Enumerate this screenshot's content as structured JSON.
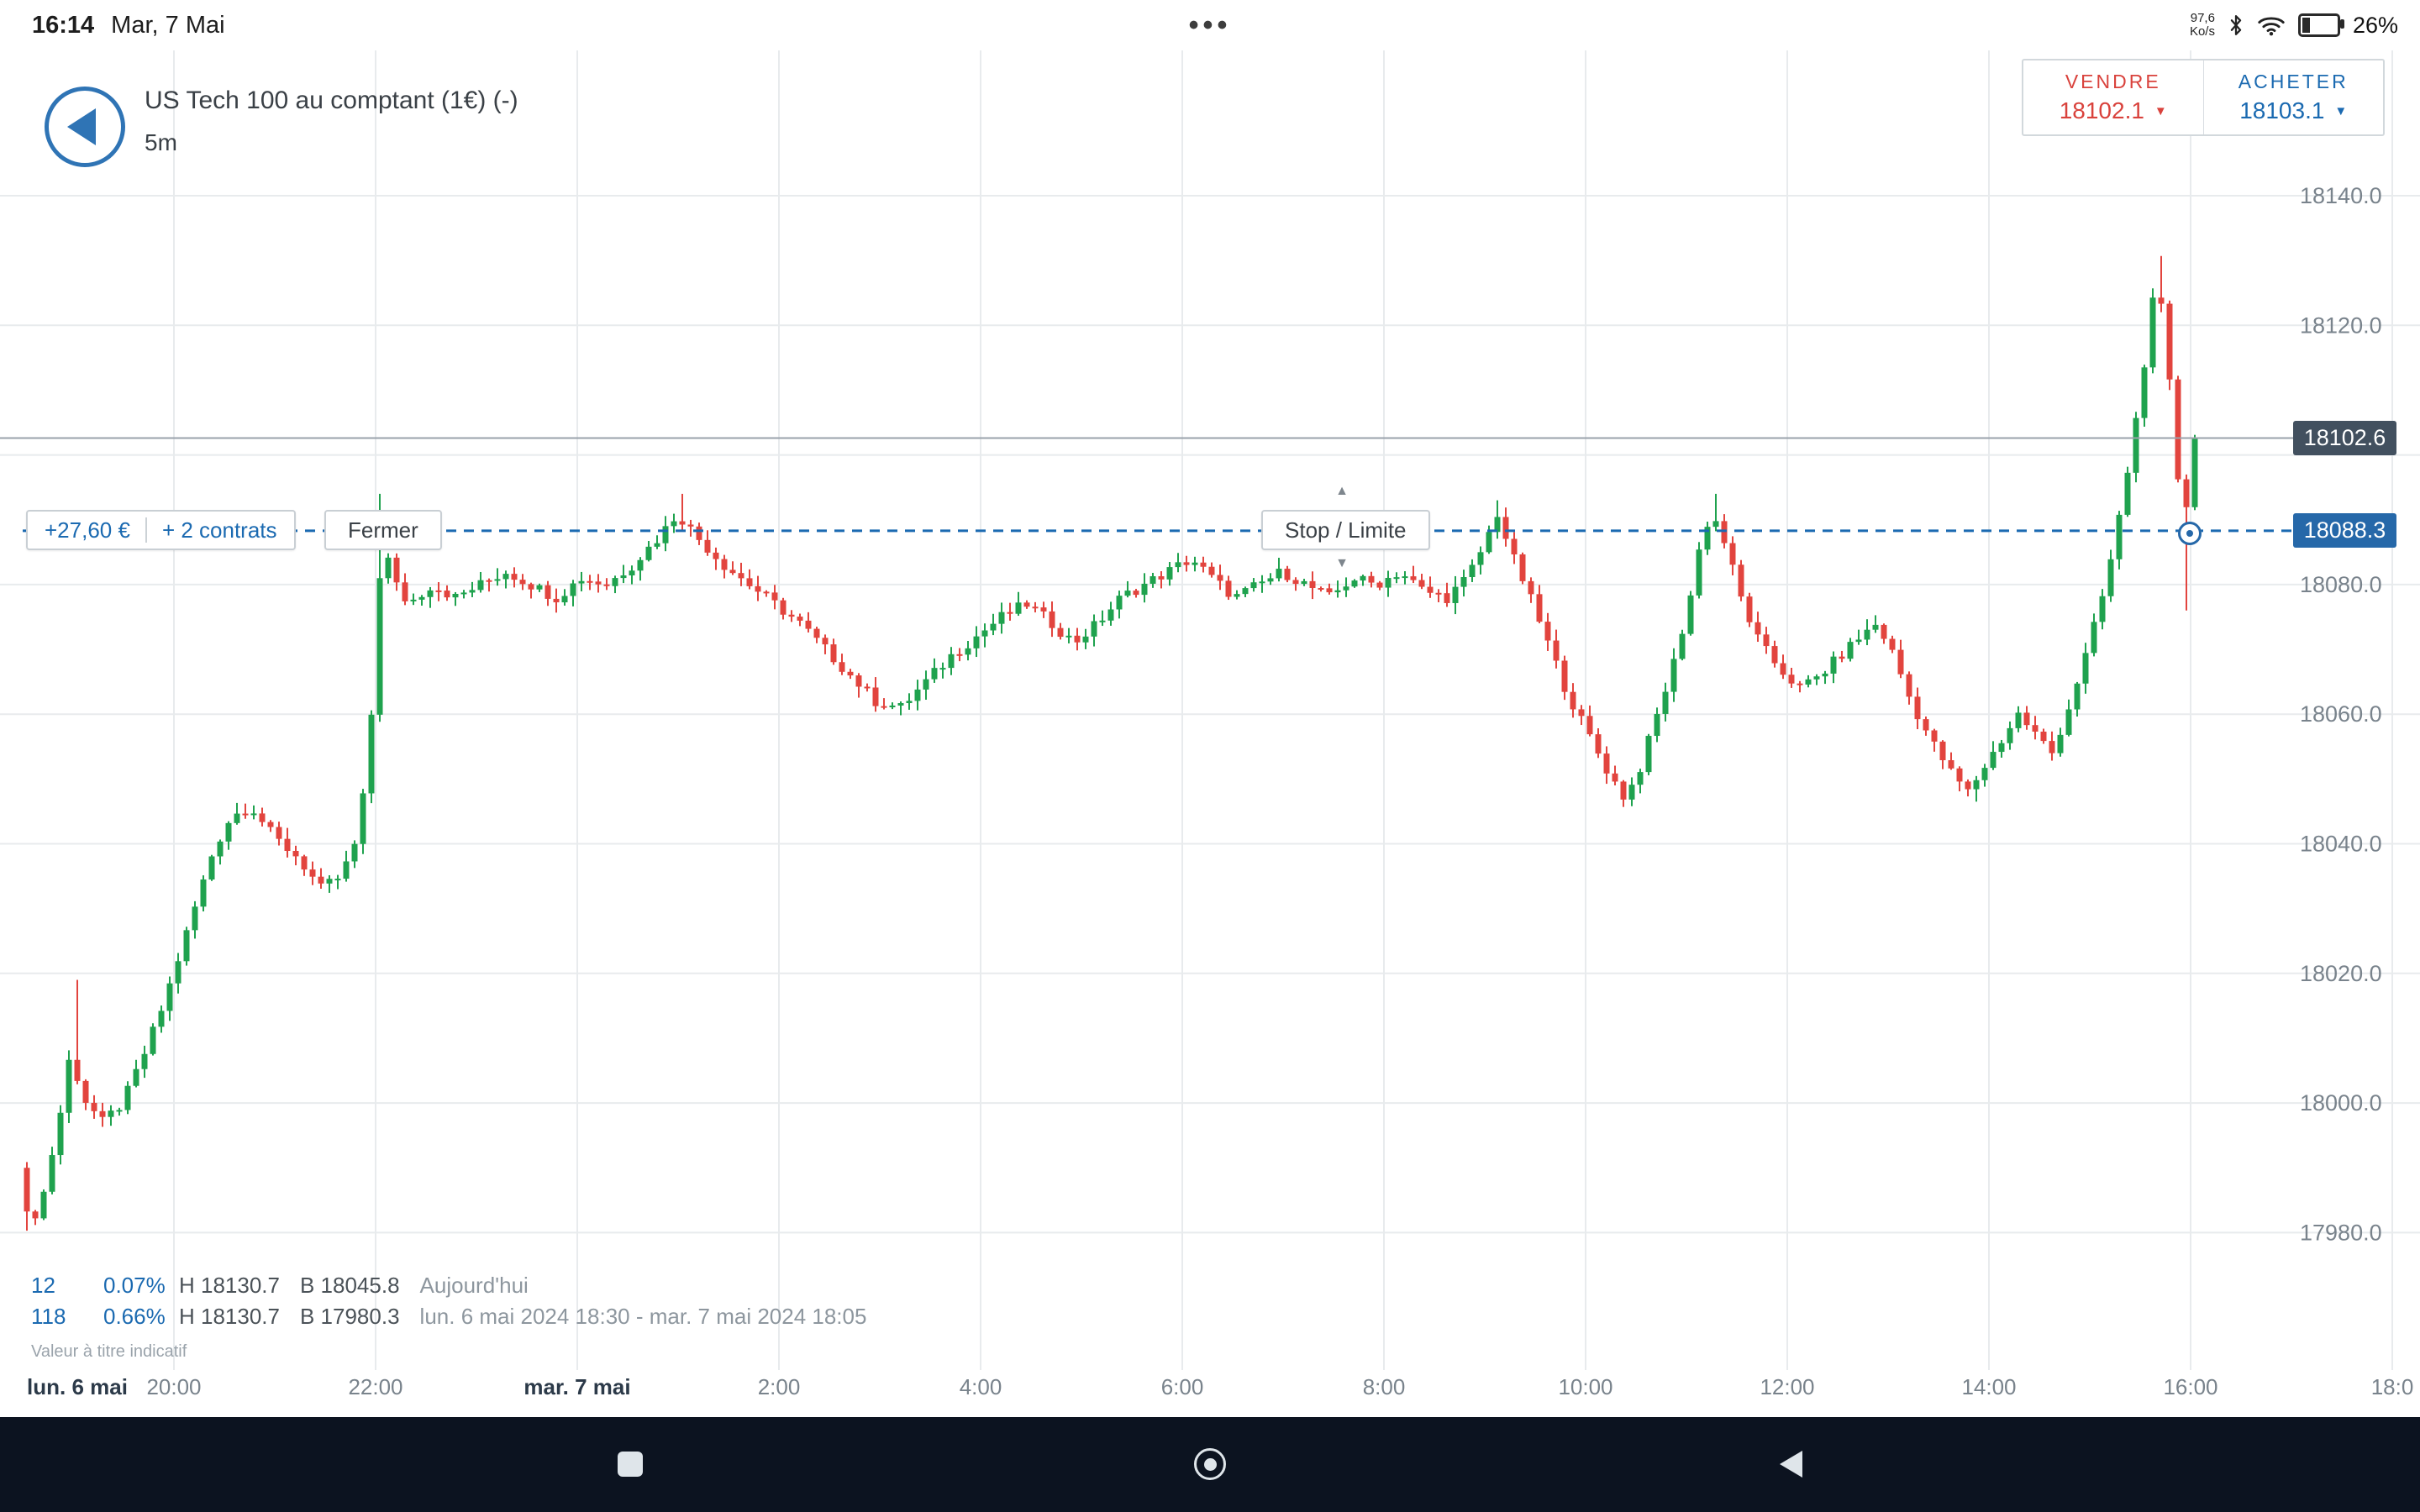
{
  "status_bar": {
    "time": "16:14",
    "date": "Mar, 7 Mai",
    "menu_dots": "•••",
    "network_speed_value": "97,6",
    "network_speed_unit": "Ko/s",
    "battery_percent": "26%"
  },
  "header": {
    "instrument": "US Tech 100 au comptant (1€) (-)",
    "timeframe": "5m"
  },
  "deal_ticket": {
    "sell_label": "VENDRE",
    "sell_price": "18102.1",
    "sell_caret": "▼",
    "buy_label": "ACHETER",
    "buy_price": "18103.1",
    "buy_caret": "▼"
  },
  "position_bar": {
    "pnl": "+27,60 €",
    "contracts": "+ 2 contrats",
    "close_label": "Fermer",
    "stop_limit_label": "Stop / Limite",
    "arrow_up": "▲",
    "arrow_down": "▼",
    "level": 18088.3,
    "level_label": "18088.3"
  },
  "current_price": {
    "value": 18102.6,
    "label": "18102.6"
  },
  "stats": {
    "row1": {
      "bars": "12",
      "pct": "0.07%",
      "high": "H 18130.7",
      "low": "B 18045.8",
      "range": "Aujourd'hui"
    },
    "row2": {
      "bars": "118",
      "pct": "0.66%",
      "high": "H 18130.7",
      "low": "B 17980.3",
      "range": "lun. 6 mai 2024 18:30 - mar. 7 mai 2024 18:05"
    },
    "disclaimer": "Valeur à titre indicatif"
  },
  "colors": {
    "accent_blue": "#1b6ab1",
    "sell_red": "#d9423c"
  },
  "chart_data": {
    "type": "candlestick",
    "interval_minutes": 5,
    "minutes_total": 1295,
    "session_start_label": "lun. 6 mai 2024 18:30",
    "session_end_label": "mar. 7 mai 2024 18:05",
    "session_high": 18130.7,
    "session_low": 17980.3,
    "today_high": 18130.7,
    "today_low": 18045.8,
    "last_price": 18102.6,
    "up_color": "#1fa24e",
    "down_color": "#e2443e",
    "colors": {
      "grid": "#e8ebed",
      "axis_text": "#79838c",
      "axis_day": "#2c3a49",
      "last_price_line": "#9aa2ab"
    },
    "y_axis": {
      "min": 17968,
      "max": 18146,
      "gridlines": [
        18140,
        18120,
        18100,
        18080,
        18060,
        18040,
        18020,
        18000,
        17980
      ],
      "labels": [
        [
          18140,
          "18140.0"
        ],
        [
          18120,
          "18120.0"
        ],
        [
          18080,
          "18080.0"
        ],
        [
          18060,
          "18060.0"
        ],
        [
          18040,
          "18040.0"
        ],
        [
          18020,
          "18020.0"
        ],
        [
          18000,
          "18000.0"
        ],
        [
          17980,
          "17980.0"
        ]
      ]
    },
    "x_axis": {
      "grid_ts": [
        90,
        210,
        330,
        450,
        570,
        690,
        810,
        930,
        1050,
        1170,
        1290,
        1410
      ],
      "labels": [
        {
          "text": "lun. 6 mai",
          "t": 32.5,
          "day": true
        },
        {
          "text": "20:00",
          "t": 90
        },
        {
          "text": "22:00",
          "t": 210
        },
        {
          "text": "mar. 7 mai",
          "t": 330,
          "day": true
        },
        {
          "text": "2:00",
          "t": 450
        },
        {
          "text": "4:00",
          "t": 570
        },
        {
          "text": "6:00",
          "t": 690
        },
        {
          "text": "8:00",
          "t": 810
        },
        {
          "text": "10:00",
          "t": 930
        },
        {
          "text": "12:00",
          "t": 1050
        },
        {
          "text": "14:00",
          "t": 1170
        },
        {
          "text": "16:00",
          "t": 1290
        },
        {
          "text": "18:0",
          "t": 1410
        }
      ]
    },
    "path": [
      [
        0,
        17990
      ],
      [
        6,
        17981
      ],
      [
        14,
        17985
      ],
      [
        24,
        17997
      ],
      [
        31,
        18008
      ],
      [
        38,
        18001
      ],
      [
        50,
        17997
      ],
      [
        62,
        18000
      ],
      [
        74,
        18007
      ],
      [
        86,
        18015
      ],
      [
        96,
        18023
      ],
      [
        106,
        18031
      ],
      [
        116,
        18039
      ],
      [
        126,
        18044
      ],
      [
        138,
        18046
      ],
      [
        152,
        18041
      ],
      [
        166,
        18038
      ],
      [
        180,
        18033
      ],
      [
        192,
        18035
      ],
      [
        202,
        18041
      ],
      [
        209,
        18055
      ],
      [
        213,
        18075
      ],
      [
        217,
        18088
      ],
      [
        222,
        18081
      ],
      [
        232,
        18077
      ],
      [
        246,
        18080
      ],
      [
        260,
        18078
      ],
      [
        275,
        18080
      ],
      [
        290,
        18082
      ],
      [
        305,
        18080
      ],
      [
        320,
        18078
      ],
      [
        335,
        18081
      ],
      [
        350,
        18080
      ],
      [
        365,
        18083
      ],
      [
        380,
        18087
      ],
      [
        392,
        18091
      ],
      [
        405,
        18087
      ],
      [
        420,
        18083
      ],
      [
        435,
        18080
      ],
      [
        450,
        18077
      ],
      [
        465,
        18074
      ],
      [
        480,
        18070
      ],
      [
        495,
        18066
      ],
      [
        510,
        18062
      ],
      [
        525,
        18061
      ],
      [
        540,
        18065
      ],
      [
        555,
        18069
      ],
      [
        570,
        18072
      ],
      [
        585,
        18075
      ],
      [
        600,
        18077
      ],
      [
        615,
        18074
      ],
      [
        628,
        18071
      ],
      [
        642,
        18074
      ],
      [
        656,
        18078
      ],
      [
        670,
        18080
      ],
      [
        684,
        18082
      ],
      [
        698,
        18084
      ],
      [
        710,
        18081
      ],
      [
        724,
        18078
      ],
      [
        738,
        18080
      ],
      [
        752,
        18082
      ],
      [
        766,
        18080
      ],
      [
        780,
        18078
      ],
      [
        794,
        18081
      ],
      [
        808,
        18080
      ],
      [
        822,
        18082
      ],
      [
        836,
        18079
      ],
      [
        850,
        18078
      ],
      [
        862,
        18081
      ],
      [
        872,
        18086
      ],
      [
        880,
        18091
      ],
      [
        888,
        18085
      ],
      [
        898,
        18079
      ],
      [
        910,
        18071
      ],
      [
        922,
        18063
      ],
      [
        934,
        18057
      ],
      [
        946,
        18051
      ],
      [
        956,
        18047
      ],
      [
        964,
        18051
      ],
      [
        974,
        18059
      ],
      [
        984,
        18067
      ],
      [
        994,
        18077
      ],
      [
        1002,
        18088
      ],
      [
        1008,
        18091
      ],
      [
        1016,
        18086
      ],
      [
        1026,
        18077
      ],
      [
        1036,
        18071
      ],
      [
        1048,
        18067
      ],
      [
        1060,
        18064
      ],
      [
        1072,
        18066
      ],
      [
        1084,
        18069
      ],
      [
        1096,
        18072
      ],
      [
        1106,
        18074
      ],
      [
        1116,
        18069
      ],
      [
        1126,
        18062
      ],
      [
        1138,
        18056
      ],
      [
        1150,
        18051
      ],
      [
        1160,
        18048
      ],
      [
        1170,
        18052
      ],
      [
        1180,
        18056
      ],
      [
        1190,
        18060
      ],
      [
        1200,
        18057
      ],
      [
        1210,
        18054
      ],
      [
        1220,
        18061
      ],
      [
        1230,
        18069
      ],
      [
        1239,
        18077
      ],
      [
        1247,
        18086
      ],
      [
        1254,
        18096
      ],
      [
        1261,
        18107
      ],
      [
        1267,
        18118
      ],
      [
        1272,
        18127
      ],
      [
        1276,
        18121
      ],
      [
        1280,
        18111
      ],
      [
        1284,
        18099
      ],
      [
        1288,
        18089
      ],
      [
        1292,
        18096
      ],
      [
        1296,
        18102.6
      ]
    ],
    "specials": {
      "highs": [
        [
          33,
          18019
        ],
        [
          212,
          18094
        ],
        [
          393,
          18094
        ],
        [
          878,
          18093
        ],
        [
          1008,
          18094
        ],
        [
          1272,
          18130.7
        ]
      ],
      "lows": [
        [
          2,
          17980.3
        ],
        [
          955,
          18045.8
        ],
        [
          1160,
          18046.5
        ],
        [
          1287,
          18076
        ]
      ],
      "last_close": 18102.6
    }
  }
}
